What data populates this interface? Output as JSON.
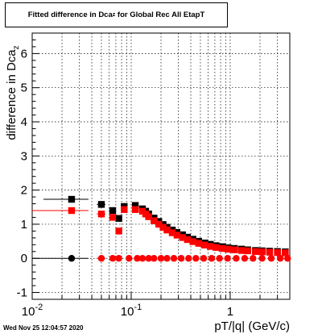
{
  "chart_data": {
    "type": "scatter",
    "title_main": "Fitted difference in Dca",
    "title_sub": "z",
    "title_tail": " for Global Rec All EtapT",
    "xlabel": "pT/|q| (GeV/c)",
    "ylabel_main": "difference in Dca",
    "ylabel_sub": "z",
    "x_scale": "log",
    "xlim": [
      0.01,
      4
    ],
    "ylim": [
      -1.2,
      6.6
    ],
    "grid": true,
    "yticks": [
      "-1",
      "0",
      "1",
      "2",
      "3",
      "4",
      "5",
      "6"
    ],
    "xticks": [
      {
        "value": 0.01,
        "label": "10",
        "exp": "-2"
      },
      {
        "value": 0.1,
        "label": "10",
        "exp": "-1"
      },
      {
        "value": 1,
        "label": "1",
        "exp": ""
      }
    ],
    "series": [
      {
        "color": "#000000",
        "points": [
          {
            "x": 0.025,
            "y": 1.73,
            "xlo": 0.013,
            "xhi": 0.037
          },
          {
            "x": 0.05,
            "y": 1.58,
            "xlo": 0.045,
            "xhi": 0.055
          },
          {
            "x": 0.065,
            "y": 1.4,
            "xlo": 0.061,
            "xhi": 0.069
          },
          {
            "x": 0.075,
            "y": 1.17,
            "xlo": 0.071,
            "xhi": 0.079
          },
          {
            "x": 0.085,
            "y": 1.52,
            "xlo": 0.081,
            "xhi": 0.089
          },
          {
            "x": 0.11,
            "y": 1.55,
            "xlo": 0.105,
            "xhi": 0.115
          },
          {
            "x": 0.13,
            "y": 1.45,
            "xlo": 0.125,
            "xhi": 0.135
          },
          {
            "x": 0.14,
            "y": 1.38,
            "xlo": 0.135,
            "xhi": 0.145
          },
          {
            "x": 0.15,
            "y": 1.3,
            "xlo": 0.145,
            "xhi": 0.155
          },
          {
            "x": 0.17,
            "y": 1.18,
            "xlo": 0.165,
            "xhi": 0.175
          },
          {
            "x": 0.19,
            "y": 1.08,
            "xlo": 0.185,
            "xhi": 0.195
          },
          {
            "x": 0.21,
            "y": 0.99,
            "xlo": 0.205,
            "xhi": 0.215
          },
          {
            "x": 0.23,
            "y": 0.91,
            "xlo": 0.225,
            "xhi": 0.235
          },
          {
            "x": 0.26,
            "y": 0.83,
            "xlo": 0.255,
            "xhi": 0.265
          },
          {
            "x": 0.29,
            "y": 0.76,
            "xlo": 0.285,
            "xhi": 0.295
          },
          {
            "x": 0.33,
            "y": 0.69,
            "xlo": 0.325,
            "xhi": 0.335
          },
          {
            "x": 0.37,
            "y": 0.62,
            "xlo": 0.365,
            "xhi": 0.375
          },
          {
            "x": 0.42,
            "y": 0.56,
            "xlo": 0.415,
            "xhi": 0.425
          },
          {
            "x": 0.48,
            "y": 0.5,
            "xlo": 0.475,
            "xhi": 0.485
          },
          {
            "x": 0.55,
            "y": 0.45,
            "xlo": 0.545,
            "xhi": 0.555
          },
          {
            "x": 0.63,
            "y": 0.41,
            "xlo": 0.625,
            "xhi": 0.635
          },
          {
            "x": 0.72,
            "y": 0.37,
            "xlo": 0.715,
            "xhi": 0.725
          },
          {
            "x": 0.83,
            "y": 0.34,
            "xlo": 0.825,
            "xhi": 0.835
          },
          {
            "x": 0.95,
            "y": 0.31,
            "xlo": 0.945,
            "xhi": 0.955
          },
          {
            "x": 1.1,
            "y": 0.29,
            "xlo": 1.09,
            "xhi": 1.11
          },
          {
            "x": 1.3,
            "y": 0.27,
            "xlo": 1.29,
            "xhi": 1.31
          },
          {
            "x": 1.5,
            "y": 0.25,
            "xlo": 1.49,
            "xhi": 1.51
          },
          {
            "x": 1.8,
            "y": 0.23,
            "xlo": 1.79,
            "xhi": 1.81
          },
          {
            "x": 2.1,
            "y": 0.22,
            "xlo": 2.09,
            "xhi": 2.11
          },
          {
            "x": 2.5,
            "y": 0.21,
            "xlo": 2.49,
            "xhi": 2.51
          },
          {
            "x": 3.0,
            "y": 0.2,
            "xlo": 2.99,
            "xhi": 3.01
          },
          {
            "x": 3.6,
            "y": 0.19,
            "xlo": 3.59,
            "xhi": 3.61
          }
        ]
      },
      {
        "color": "#ff0000",
        "points": [
          {
            "x": 0.025,
            "y": 1.4,
            "xlo": 0.01,
            "xhi": 0.037
          },
          {
            "x": 0.05,
            "y": 1.3,
            "xlo": 0.045,
            "xhi": 0.055
          },
          {
            "x": 0.065,
            "y": 1.2,
            "xlo": 0.061,
            "xhi": 0.069
          },
          {
            "x": 0.075,
            "y": 0.8,
            "xlo": 0.071,
            "xhi": 0.079
          },
          {
            "x": 0.085,
            "y": 1.43,
            "xlo": 0.081,
            "xhi": 0.089
          },
          {
            "x": 0.11,
            "y": 1.43,
            "xlo": 0.105,
            "xhi": 0.115
          },
          {
            "x": 0.13,
            "y": 1.38,
            "xlo": 0.125,
            "xhi": 0.135
          },
          {
            "x": 0.14,
            "y": 1.3,
            "xlo": 0.135,
            "xhi": 0.145
          },
          {
            "x": 0.15,
            "y": 1.22,
            "xlo": 0.145,
            "xhi": 0.155
          },
          {
            "x": 0.17,
            "y": 1.1,
            "xlo": 0.165,
            "xhi": 0.175
          },
          {
            "x": 0.19,
            "y": 1.0,
            "xlo": 0.185,
            "xhi": 0.195
          },
          {
            "x": 0.21,
            "y": 0.91,
            "xlo": 0.205,
            "xhi": 0.215
          },
          {
            "x": 0.23,
            "y": 0.83,
            "xlo": 0.225,
            "xhi": 0.235
          },
          {
            "x": 0.26,
            "y": 0.75,
            "xlo": 0.255,
            "xhi": 0.265
          },
          {
            "x": 0.29,
            "y": 0.68,
            "xlo": 0.285,
            "xhi": 0.295
          },
          {
            "x": 0.33,
            "y": 0.61,
            "xlo": 0.325,
            "xhi": 0.335
          },
          {
            "x": 0.37,
            "y": 0.55,
            "xlo": 0.365,
            "xhi": 0.375
          },
          {
            "x": 0.42,
            "y": 0.49,
            "xlo": 0.415,
            "xhi": 0.425
          },
          {
            "x": 0.48,
            "y": 0.44,
            "xlo": 0.475,
            "xhi": 0.485
          },
          {
            "x": 0.55,
            "y": 0.39,
            "xlo": 0.545,
            "xhi": 0.555
          },
          {
            "x": 0.63,
            "y": 0.35,
            "xlo": 0.625,
            "xhi": 0.635
          },
          {
            "x": 0.72,
            "y": 0.32,
            "xlo": 0.715,
            "xhi": 0.725
          },
          {
            "x": 0.83,
            "y": 0.29,
            "xlo": 0.825,
            "xhi": 0.835
          },
          {
            "x": 0.95,
            "y": 0.27,
            "xlo": 0.945,
            "xhi": 0.955
          },
          {
            "x": 1.1,
            "y": 0.25,
            "xlo": 1.09,
            "xhi": 1.11
          },
          {
            "x": 1.3,
            "y": 0.23,
            "xlo": 1.29,
            "xhi": 1.31
          },
          {
            "x": 1.5,
            "y": 0.22,
            "xlo": 1.49,
            "xhi": 1.51
          },
          {
            "x": 1.8,
            "y": 0.2,
            "xlo": 1.79,
            "xhi": 1.81
          },
          {
            "x": 2.1,
            "y": 0.19,
            "xlo": 2.09,
            "xhi": 2.11
          },
          {
            "x": 2.5,
            "y": 0.18,
            "xlo": 2.49,
            "xhi": 2.51
          },
          {
            "x": 3.0,
            "y": 0.17,
            "xlo": 2.99,
            "xhi": 3.01
          },
          {
            "x": 3.6,
            "y": 0.16,
            "xlo": 3.59,
            "xhi": 3.61
          }
        ]
      },
      {
        "color": "#000000",
        "marker": "circle",
        "points": [
          {
            "x": 0.025,
            "y": 0.0,
            "xlo": 0.01,
            "xhi": 0.037
          }
        ]
      },
      {
        "color": "#ff0000",
        "marker": "circle",
        "points": [
          {
            "x": 0.05,
            "y": 0.0,
            "xlo": 0.045,
            "xhi": 0.055
          },
          {
            "x": 0.065,
            "y": 0.0,
            "xlo": 0.061,
            "xhi": 0.069
          },
          {
            "x": 0.075,
            "y": 0.0,
            "xlo": 0.071,
            "xhi": 0.079
          },
          {
            "x": 0.095,
            "y": 0.0,
            "xlo": 0.091,
            "xhi": 0.099
          },
          {
            "x": 0.115,
            "y": 0.0,
            "xlo": 0.11,
            "xhi": 0.12
          },
          {
            "x": 0.13,
            "y": 0.0,
            "xlo": 0.125,
            "xhi": 0.135
          },
          {
            "x": 0.15,
            "y": 0.0,
            "xlo": 0.145,
            "xhi": 0.155
          },
          {
            "x": 0.17,
            "y": 0.0,
            "xlo": 0.165,
            "xhi": 0.175
          },
          {
            "x": 0.2,
            "y": 0.0,
            "xlo": 0.195,
            "xhi": 0.205
          },
          {
            "x": 0.23,
            "y": 0.0,
            "xlo": 0.225,
            "xhi": 0.235
          },
          {
            "x": 0.27,
            "y": 0.0,
            "xlo": 0.265,
            "xhi": 0.275
          },
          {
            "x": 0.32,
            "y": 0.0,
            "xlo": 0.315,
            "xhi": 0.325
          },
          {
            "x": 0.38,
            "y": 0.0,
            "xlo": 0.375,
            "xhi": 0.385
          },
          {
            "x": 0.45,
            "y": 0.0,
            "xlo": 0.445,
            "xhi": 0.455
          },
          {
            "x": 0.54,
            "y": 0.0,
            "xlo": 0.535,
            "xhi": 0.545
          },
          {
            "x": 0.65,
            "y": 0.0,
            "xlo": 0.645,
            "xhi": 0.655
          },
          {
            "x": 0.78,
            "y": 0.0,
            "xlo": 0.775,
            "xhi": 0.785
          },
          {
            "x": 0.94,
            "y": 0.0,
            "xlo": 0.935,
            "xhi": 0.945
          },
          {
            "x": 1.15,
            "y": 0.0,
            "xlo": 1.14,
            "xhi": 1.16
          },
          {
            "x": 1.4,
            "y": 0.0,
            "xlo": 1.39,
            "xhi": 1.41
          },
          {
            "x": 1.7,
            "y": 0.0,
            "xlo": 1.69,
            "xhi": 1.71
          },
          {
            "x": 2.1,
            "y": 0.0,
            "xlo": 2.09,
            "xhi": 2.11
          },
          {
            "x": 2.6,
            "y": 0.0,
            "xlo": 2.59,
            "xhi": 2.61
          },
          {
            "x": 3.2,
            "y": 0.0,
            "xlo": 3.19,
            "xhi": 3.21
          },
          {
            "x": 3.8,
            "y": 0.0,
            "xlo": 3.79,
            "xhi": 3.81
          }
        ]
      }
    ]
  },
  "footer": {
    "timestamp": "Wed Nov 25 12:04:57 2020"
  }
}
